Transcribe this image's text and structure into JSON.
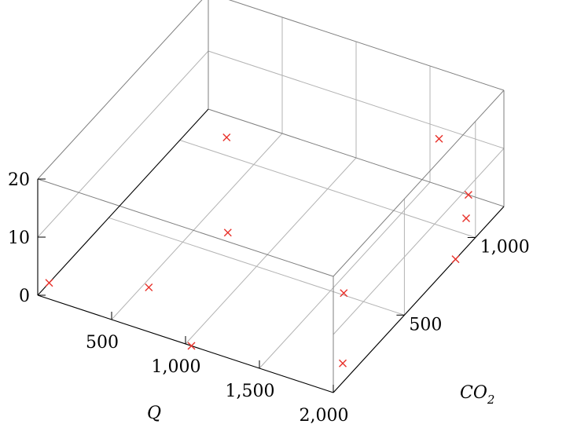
{
  "chart_data": {
    "type": "scatter3d",
    "title": "",
    "xlabel": "Q",
    "ylabel": "CO",
    "ylabel_subscript": "2",
    "zlabel": "",
    "xlim": [
      0,
      2000
    ],
    "ylim": [
      0,
      1200
    ],
    "zlim": [
      0,
      20
    ],
    "xticks": [
      500,
      1000,
      1500,
      2000
    ],
    "xtick_labels": [
      "500",
      "1,000",
      "1,500",
      "2,000"
    ],
    "yticks": [
      500,
      1000
    ],
    "ytick_labels": [
      "500",
      "1,000"
    ],
    "zticks": [
      0,
      10,
      20
    ],
    "ztick_labels": [
      "0",
      "10",
      "20"
    ],
    "grid": true,
    "marker": "x",
    "marker_color": "#e8312a",
    "points": [
      {
        "x": 0,
        "y": 80,
        "z": 0
      },
      {
        "x": 540,
        "y": 220,
        "z": 0
      },
      {
        "x": 230,
        "y": 1090,
        "z": 0
      },
      {
        "x": 690,
        "y": 620,
        "z": 0
      },
      {
        "x": 1040,
        "y": 0,
        "z": 0
      },
      {
        "x": 1910,
        "y": 160,
        "z": 0
      },
      {
        "x": 1580,
        "y": 510,
        "z": 0
      },
      {
        "x": 2000,
        "y": 860,
        "z": 0
      },
      {
        "x": 1860,
        "y": 1080,
        "z": 0
      },
      {
        "x": 1340,
        "y": 1430,
        "z": 0
      },
      {
        "x": 1760,
        "y": 1200,
        "z": 0
      }
    ]
  }
}
